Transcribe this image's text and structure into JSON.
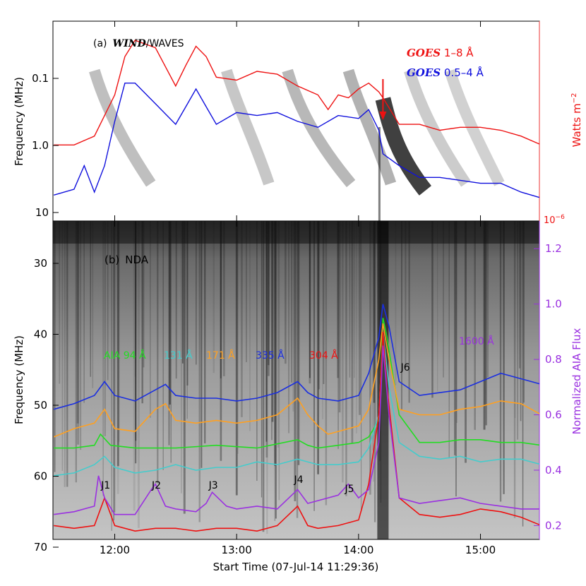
{
  "chart_data": [
    {
      "type": "line",
      "panel_label": "(a)",
      "instrument_label": [
        "WIND",
        "/WAVES"
      ],
      "ylabel": "Frequency (MHz)",
      "yticks": [
        "0.1",
        "1.0",
        "10"
      ],
      "y2label": [
        "Watts m",
        "−2"
      ],
      "y2_min_label": [
        "10",
        "−6"
      ],
      "xticks": [
        "12:00",
        "13:00",
        "14:00",
        "15:00"
      ],
      "legend_position": "top-right",
      "arrow_annotation_time": "14:12",
      "series": [
        {
          "name": [
            "GOES",
            " 1–8 Å"
          ],
          "color": "#ee1111",
          "x": [
            "11:30",
            "11:40",
            "11:50",
            "12:00",
            "12:05",
            "12:10",
            "12:20",
            "12:30",
            "12:35",
            "12:40",
            "12:45",
            "12:50",
            "13:00",
            "13:10",
            "13:20",
            "13:30",
            "13:40",
            "13:45",
            "13:50",
            "13:55",
            "14:00",
            "14:05",
            "14:10",
            "14:12",
            "14:20",
            "14:30",
            "14:40",
            "14:50",
            "15:00",
            "15:10",
            "15:20",
            "15:30"
          ],
          "values": [
            4.3,
            4.3,
            4.0,
            2.6,
            1.3,
            0.75,
            1.0,
            2.3,
            1.6,
            0.95,
            1.3,
            2.0,
            2.1,
            1.8,
            1.9,
            2.3,
            2.6,
            3.1,
            2.6,
            2.7,
            2.4,
            2.2,
            2.5,
            2.7,
            3.6,
            3.6,
            3.8,
            3.7,
            3.7,
            3.8,
            4.0,
            4.3
          ]
        },
        {
          "name": [
            "GOES",
            " 0.5–4 Å"
          ],
          "color": "#1010dd",
          "x": [
            "11:30",
            "11:40",
            "11:45",
            "11:50",
            "11:55",
            "12:00",
            "12:05",
            "12:10",
            "12:20",
            "12:30",
            "12:35",
            "12:40",
            "12:45",
            "12:50",
            "13:00",
            "13:10",
            "13:20",
            "13:30",
            "13:40",
            "13:50",
            "14:00",
            "14:05",
            "14:10",
            "14:12",
            "14:20",
            "14:30",
            "14:40",
            "14:50",
            "15:00",
            "15:10",
            "15:20",
            "15:30"
          ],
          "values": [
            6.0,
            5.8,
            5.0,
            5.9,
            5.0,
            3.5,
            2.2,
            2.2,
            2.9,
            3.6,
            3.0,
            2.4,
            3.0,
            3.6,
            3.2,
            3.3,
            3.2,
            3.5,
            3.7,
            3.3,
            3.4,
            3.1,
            3.8,
            4.6,
            5.0,
            5.4,
            5.4,
            5.5,
            5.6,
            5.6,
            5.9,
            6.1
          ]
        }
      ]
    },
    {
      "type": "line",
      "panel_label": "(b)",
      "instrument_label": "NDA",
      "ylabel": "Frequency (MHz)",
      "yticks": [
        "30",
        "40",
        "50",
        "60",
        "70"
      ],
      "y2label": "Normalized AIA Flux",
      "y2ticks": [
        "0.2",
        "0.4",
        "0.6",
        "0.8",
        "1.0",
        "1.2"
      ],
      "ylim_right": [
        0.15,
        1.3
      ],
      "xlabel": "Start Time (07-Jul-14 11:29:36)",
      "xticks": [
        "12:00",
        "13:00",
        "14:00",
        "15:00"
      ],
      "burst_labels": [
        {
          "label": "J1",
          "time": "11:55"
        },
        {
          "label": "J2",
          "time": "12:20"
        },
        {
          "label": "J3",
          "time": "12:48"
        },
        {
          "label": "J4",
          "time": "13:30"
        },
        {
          "label": "J5",
          "time": "13:55"
        },
        {
          "label": "J6",
          "time": "14:18"
        }
      ],
      "series": [
        {
          "name": [
            "AIA 94 ",
            "Å"
          ],
          "color": "#22dd22",
          "x": [
            "11:30",
            "11:40",
            "11:50",
            "11:53",
            "11:58",
            "12:10",
            "12:30",
            "12:50",
            "13:10",
            "13:30",
            "13:35",
            "13:40",
            "13:50",
            "14:00",
            "14:05",
            "14:10",
            "14:12",
            "14:14",
            "14:20",
            "14:30",
            "14:40",
            "14:50",
            "15:00",
            "15:10",
            "15:20",
            "15:30"
          ],
          "values": [
            0.48,
            0.48,
            0.49,
            0.53,
            0.49,
            0.48,
            0.48,
            0.49,
            0.48,
            0.51,
            0.49,
            0.48,
            0.49,
            0.5,
            0.52,
            0.58,
            0.95,
            0.88,
            0.6,
            0.5,
            0.5,
            0.51,
            0.51,
            0.5,
            0.5,
            0.49
          ]
        },
        {
          "name": [
            "131 ",
            "Å"
          ],
          "color": "#44cccc",
          "x": [
            "11:30",
            "11:40",
            "11:50",
            "11:55",
            "12:00",
            "12:10",
            "12:20",
            "12:30",
            "12:40",
            "12:50",
            "13:00",
            "13:10",
            "13:20",
            "13:30",
            "13:40",
            "13:50",
            "14:00",
            "14:05",
            "14:10",
            "14:12",
            "14:15",
            "14:20",
            "14:30",
            "14:40",
            "14:50",
            "15:00",
            "15:10",
            "15:20",
            "15:30"
          ],
          "values": [
            0.38,
            0.39,
            0.42,
            0.45,
            0.41,
            0.39,
            0.4,
            0.42,
            0.4,
            0.41,
            0.41,
            0.43,
            0.42,
            0.44,
            0.42,
            0.42,
            0.43,
            0.48,
            0.6,
            0.9,
            0.7,
            0.5,
            0.45,
            0.44,
            0.45,
            0.43,
            0.44,
            0.44,
            0.42
          ]
        },
        {
          "name": [
            "171 ",
            "Å"
          ],
          "color": "#ffa020",
          "x": [
            "11:30",
            "11:40",
            "11:50",
            "11:55",
            "12:00",
            "12:10",
            "12:20",
            "12:25",
            "12:30",
            "12:40",
            "12:50",
            "13:00",
            "13:10",
            "13:20",
            "13:30",
            "13:35",
            "13:40",
            "13:45",
            "13:50",
            "14:00",
            "14:05",
            "14:10",
            "14:12",
            "14:15",
            "14:20",
            "14:30",
            "14:40",
            "14:50",
            "15:00",
            "15:10",
            "15:20",
            "15:30"
          ],
          "values": [
            0.52,
            0.55,
            0.57,
            0.62,
            0.55,
            0.54,
            0.62,
            0.64,
            0.58,
            0.57,
            0.58,
            0.57,
            0.58,
            0.6,
            0.66,
            0.6,
            0.56,
            0.53,
            0.54,
            0.56,
            0.62,
            0.8,
            0.93,
            0.8,
            0.62,
            0.6,
            0.6,
            0.62,
            0.63,
            0.65,
            0.64,
            0.6
          ]
        },
        {
          "name": [
            "335 ",
            "Å"
          ],
          "color": "#1a2ee0",
          "x": [
            "11:30",
            "11:40",
            "11:50",
            "11:55",
            "12:00",
            "12:10",
            "12:20",
            "12:25",
            "12:30",
            "12:40",
            "12:50",
            "13:00",
            "13:10",
            "13:20",
            "13:30",
            "13:35",
            "13:40",
            "13:50",
            "14:00",
            "14:05",
            "14:10",
            "14:12",
            "14:15",
            "14:20",
            "14:30",
            "14:40",
            "14:50",
            "15:00",
            "15:10",
            "15:20",
            "15:30"
          ],
          "values": [
            0.62,
            0.64,
            0.67,
            0.72,
            0.67,
            0.65,
            0.69,
            0.71,
            0.67,
            0.66,
            0.66,
            0.65,
            0.66,
            0.68,
            0.72,
            0.68,
            0.66,
            0.65,
            0.67,
            0.75,
            0.88,
            1.0,
            0.92,
            0.72,
            0.67,
            0.68,
            0.69,
            0.72,
            0.75,
            0.73,
            0.71
          ]
        },
        {
          "name": [
            "304 ",
            "Å"
          ],
          "color": "#ee1111",
          "x": [
            "11:30",
            "11:40",
            "11:50",
            "11:55",
            "12:00",
            "12:10",
            "12:20",
            "12:30",
            "12:40",
            "12:50",
            "13:00",
            "13:10",
            "13:20",
            "13:30",
            "13:35",
            "13:40",
            "13:50",
            "14:00",
            "14:05",
            "14:10",
            "14:12",
            "14:14",
            "14:20",
            "14:30",
            "14:40",
            "14:50",
            "15:00",
            "15:10",
            "15:20",
            "15:30"
          ],
          "values": [
            0.2,
            0.19,
            0.2,
            0.3,
            0.2,
            0.18,
            0.19,
            0.19,
            0.18,
            0.19,
            0.19,
            0.18,
            0.2,
            0.27,
            0.2,
            0.19,
            0.2,
            0.22,
            0.35,
            0.6,
            0.9,
            0.7,
            0.3,
            0.24,
            0.23,
            0.24,
            0.26,
            0.25,
            0.23,
            0.2
          ]
        },
        {
          "name": [
            "1600 ",
            "Å"
          ],
          "color": "#9a30e0",
          "x": [
            "11:30",
            "11:40",
            "11:50",
            "11:52",
            "11:55",
            "12:00",
            "12:10",
            "12:18",
            "12:20",
            "12:25",
            "12:30",
            "12:40",
            "12:45",
            "12:48",
            "12:55",
            "13:00",
            "13:10",
            "13:20",
            "13:30",
            "13:35",
            "13:40",
            "13:50",
            "13:55",
            "14:00",
            "14:05",
            "14:10",
            "14:12",
            "14:15",
            "14:20",
            "14:30",
            "14:40",
            "14:50",
            "15:00",
            "15:10",
            "15:20",
            "15:30"
          ],
          "values": [
            0.24,
            0.25,
            0.27,
            0.38,
            0.3,
            0.24,
            0.24,
            0.33,
            0.35,
            0.27,
            0.26,
            0.25,
            0.28,
            0.32,
            0.27,
            0.26,
            0.27,
            0.26,
            0.33,
            0.28,
            0.29,
            0.31,
            0.35,
            0.3,
            0.33,
            0.5,
            0.85,
            0.6,
            0.3,
            0.28,
            0.29,
            0.3,
            0.28,
            0.27,
            0.26,
            0.26
          ]
        }
      ]
    }
  ]
}
